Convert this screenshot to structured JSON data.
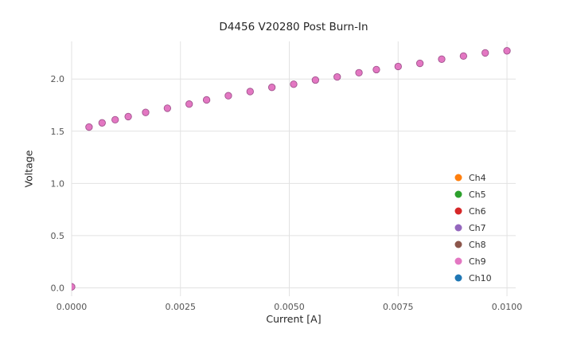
{
  "chart_data": {
    "type": "scatter",
    "title": "D4456 V20280 Post Burn-In",
    "xlabel": "Current [A]",
    "ylabel": "Voltage",
    "xlim": [
      0,
      0.0102
    ],
    "ylim": [
      -0.08,
      2.36
    ],
    "grid": true,
    "legend_position": "lower right",
    "xticks": [
      {
        "v": 0.0,
        "label": "0.0000"
      },
      {
        "v": 0.0025,
        "label": "0.0025"
      },
      {
        "v": 0.005,
        "label": "0.0050"
      },
      {
        "v": 0.0075,
        "label": "0.0075"
      },
      {
        "v": 0.01,
        "label": "0.0100"
      }
    ],
    "yticks": [
      {
        "v": 0.0,
        "label": "0.0"
      },
      {
        "v": 0.5,
        "label": "0.5"
      },
      {
        "v": 1.0,
        "label": "1.0"
      },
      {
        "v": 1.5,
        "label": "1.5"
      },
      {
        "v": 2.0,
        "label": "2.0"
      }
    ],
    "marker_color": "#e377c2",
    "x": [
      0.0,
      0.0004,
      0.0007,
      0.001,
      0.0013,
      0.0017,
      0.0022,
      0.0027,
      0.0031,
      0.0036,
      0.0041,
      0.0046,
      0.0051,
      0.0056,
      0.0061,
      0.0066,
      0.007,
      0.0075,
      0.008,
      0.0085,
      0.009,
      0.0095,
      0.01
    ],
    "y": [
      0.01,
      1.54,
      1.58,
      1.61,
      1.64,
      1.68,
      1.72,
      1.76,
      1.8,
      1.84,
      1.88,
      1.92,
      1.95,
      1.99,
      2.02,
      2.06,
      2.09,
      2.12,
      2.15,
      2.19,
      2.22,
      2.25,
      2.27
    ],
    "series": [
      {
        "name": "Ch4",
        "color": "#ff7f0e"
      },
      {
        "name": "Ch5",
        "color": "#2ca02c"
      },
      {
        "name": "Ch6",
        "color": "#d62728"
      },
      {
        "name": "Ch7",
        "color": "#9467bd"
      },
      {
        "name": "Ch8",
        "color": "#8c564b"
      },
      {
        "name": "Ch9",
        "color": "#e377c2"
      },
      {
        "name": "Ch10",
        "color": "#1f77b4"
      }
    ]
  }
}
